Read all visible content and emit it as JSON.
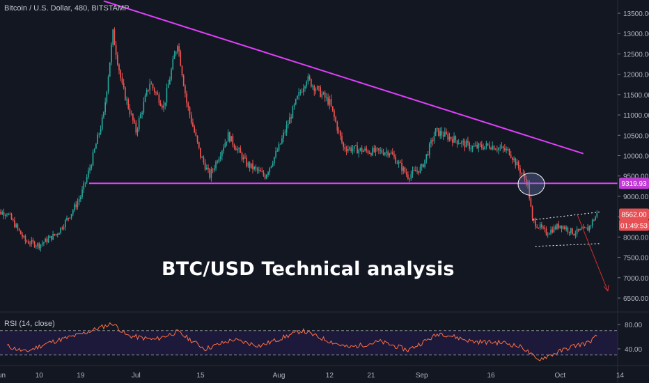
{
  "header": {
    "symbol_title": "Bitcoin / U.S. Dollar, 480, BITSTAMP"
  },
  "annotation": {
    "headline": "BTC/USD Technical analysis"
  },
  "price_tags": {
    "support": "9319.93",
    "last_price": "8562.00",
    "countdown": "01:49:53"
  },
  "rsi": {
    "legend": "RSI (14, close)",
    "upper_band": 70,
    "lower_band": 30,
    "upper_label": "80.00",
    "lower_label": "40.00"
  },
  "colors": {
    "background": "#131722",
    "bull": "#26a69a",
    "bear": "#ef5350",
    "trendline": "#e040fb",
    "rsi_line": "#ff7043",
    "rsi_band_fill": "#1f1a3d",
    "projection_arrow": "#d32f2f"
  },
  "chart_data": [
    {
      "type": "line",
      "title": "Bitcoin / U.S. Dollar, 480, BITSTAMP",
      "xlabel": "",
      "ylabel": "",
      "ylim": [
        6200,
        13800
      ],
      "y_scale": "linear",
      "grid": false,
      "y_ticks": [
        "13500.00",
        "13000.00",
        "12500.00",
        "12000.00",
        "11500.00",
        "11000.00",
        "10500.00",
        "10000.00",
        "9500.00",
        "9000.00",
        "8500.00",
        "8000.00",
        "7500.00",
        "7000.00",
        "6500.00"
      ],
      "x_ticks": [
        "Jun",
        "10",
        "19",
        "Jul",
        "15",
        "Aug",
        "12",
        "21",
        "Sep",
        "16",
        "Oct",
        "14"
      ],
      "series": [
        {
          "candle_closes_approx": [
            "2019-06-03",
            8600,
            "2019-06-07",
            7900,
            "2019-06-10",
            7800,
            "2019-06-14",
            8100,
            "2019-06-17",
            8600,
            "2019-06-19",
            9000,
            "2019-06-21",
            9700,
            "2019-06-24",
            11000,
            "2019-06-26",
            13000,
            "2019-06-28",
            11700,
            "2019-07-01",
            10600,
            "2019-07-04",
            11800,
            "2019-07-07",
            11200,
            "2019-07-10",
            12800,
            "2019-07-12",
            11300,
            "2019-07-15",
            10000,
            "2019-07-17",
            9500,
            "2019-07-21",
            10500,
            "2019-07-25",
            9800,
            "2019-07-29",
            9500,
            "2019-08-01",
            10200,
            "2019-08-05",
            11400,
            "2019-08-07",
            11900,
            "2019-08-12",
            11300,
            "2019-08-15",
            10200,
            "2019-08-21",
            10100,
            "2019-08-25",
            10100,
            "2019-08-29",
            9500,
            "2019-09-01",
            9700,
            "2019-09-04",
            10600,
            "2019-09-08",
            10400,
            "2019-09-12",
            10200,
            "2019-09-16",
            10250,
            "2019-09-20",
            10100,
            "2019-09-24",
            9300,
            "2019-09-25",
            8400,
            "2019-09-28",
            8100,
            "2019-10-01",
            8300,
            "2019-10-04",
            8100,
            "2019-10-07",
            8200,
            "2019-10-09",
            8562
          ]
        }
      ],
      "annotations": [
        {
          "label": "descending trendline",
          "from": [
            "2019-06-24",
            13800
          ],
          "to": [
            "2019-09-30",
            10050
          ]
        },
        {
          "label": "horizontal support",
          "value": 9319.93
        },
        {
          "label": "bearish channel",
          "from_date": "2019-09-25",
          "to_date": "2019-10-09",
          "lower": 7800,
          "upper": 8500
        },
        {
          "label": "breakdown circle",
          "date": "2019-09-24",
          "value": 9300
        },
        {
          "label": "projection arrow",
          "target_value": 6600
        }
      ]
    },
    {
      "type": "line",
      "title": "RSI (14, close)",
      "xlabel": "",
      "ylabel": "",
      "ylim": [
        20,
        100
      ],
      "y_ticks": [
        "80.00",
        "40.00"
      ],
      "grid": false,
      "series": [
        {
          "name": "RSI (14, close)",
          "points_approx": [
            "2019-06-03",
            45,
            "2019-06-07",
            35,
            "2019-06-12",
            50,
            "2019-06-19",
            64,
            "2019-06-26",
            82,
            "2019-06-29",
            62,
            "2019-07-05",
            55,
            "2019-07-10",
            68,
            "2019-07-16",
            40,
            "2019-07-22",
            55,
            "2019-07-28",
            45,
            "2019-08-06",
            70,
            "2019-08-10",
            58,
            "2019-08-16",
            42,
            "2019-08-23",
            52,
            "2019-08-29",
            38,
            "2019-09-05",
            66,
            "2019-09-12",
            52,
            "2019-09-19",
            50,
            "2019-09-23",
            42,
            "2019-09-26",
            22,
            "2019-09-29",
            30,
            "2019-10-04",
            45,
            "2019-10-07",
            50,
            "2019-10-09",
            61
          ]
        }
      ]
    }
  ]
}
